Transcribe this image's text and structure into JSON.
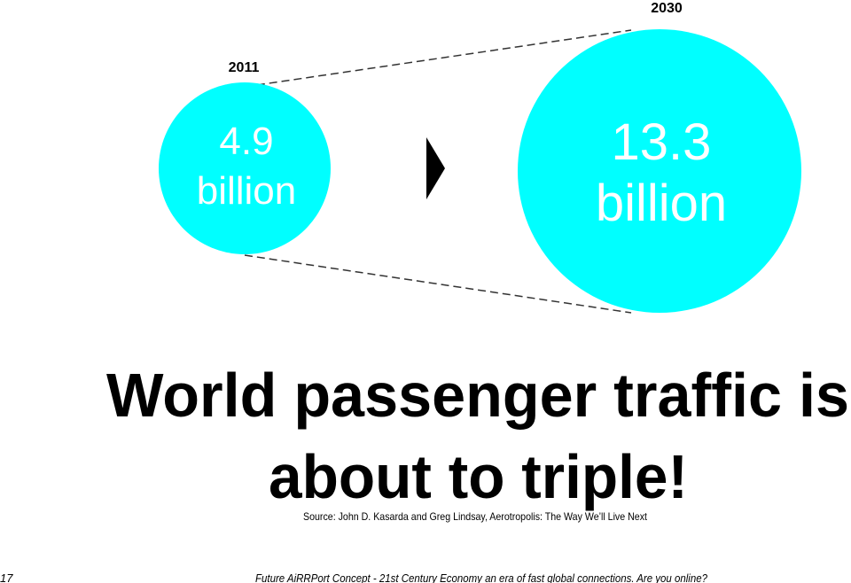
{
  "left": {
    "year": "2011",
    "value": "4.9",
    "unit": "billion"
  },
  "right": {
    "year": "2030",
    "value": "13.3",
    "unit": "billion"
  },
  "headline": {
    "line1": "World passenger traffic is",
    "line2": "about to triple!"
  },
  "source": "Source: John D. Kasarda and Greg Lindsay, Aerotropolis: The Way We’ll Live Next",
  "footer": {
    "page": "17",
    "text": "Future AiRRPort Concept - 21st Century Economy an era of fast global connections. Are you online?"
  }
}
